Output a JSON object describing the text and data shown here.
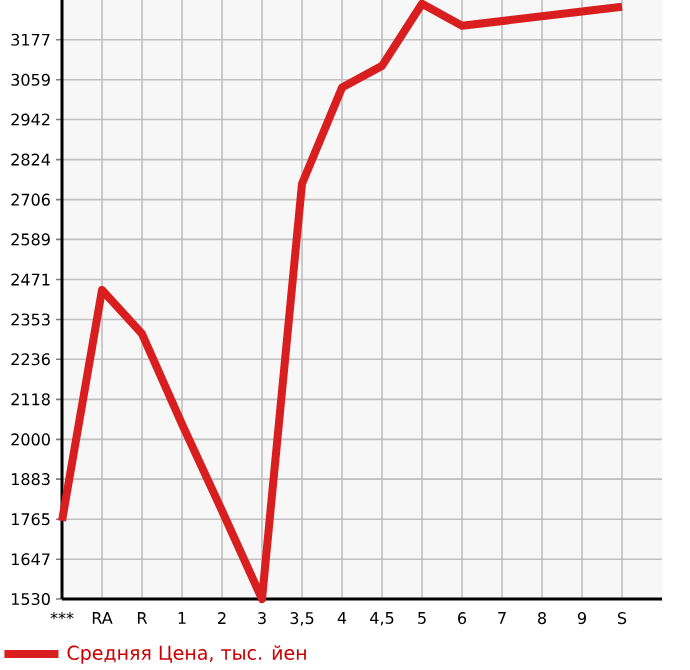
{
  "chart_data": {
    "type": "line",
    "categories": [
      "***",
      "RA",
      "R",
      "1",
      "2",
      "3",
      "3,5",
      "4",
      "4,5",
      "5",
      "6",
      "7",
      "8",
      "9",
      "S"
    ],
    "series": [
      {
        "name": "Средняя Цена, тыс. йен",
        "color": "#d81e1e",
        "values": [
          1760,
          2440,
          2311,
          2045,
          1790,
          1530,
          2753,
          3036,
          3100,
          3283,
          3218,
          3232,
          3246,
          3260,
          3274
        ]
      }
    ],
    "ylim": [
      1530,
      3294
    ],
    "yticks": [
      1530,
      1647,
      1765,
      1883,
      2000,
      2118,
      2236,
      2353,
      2471,
      2589,
      2706,
      2824,
      2942,
      3059,
      3177
    ],
    "grid": true,
    "legend": "bottom",
    "marker": "none",
    "line_style": "solid"
  }
}
